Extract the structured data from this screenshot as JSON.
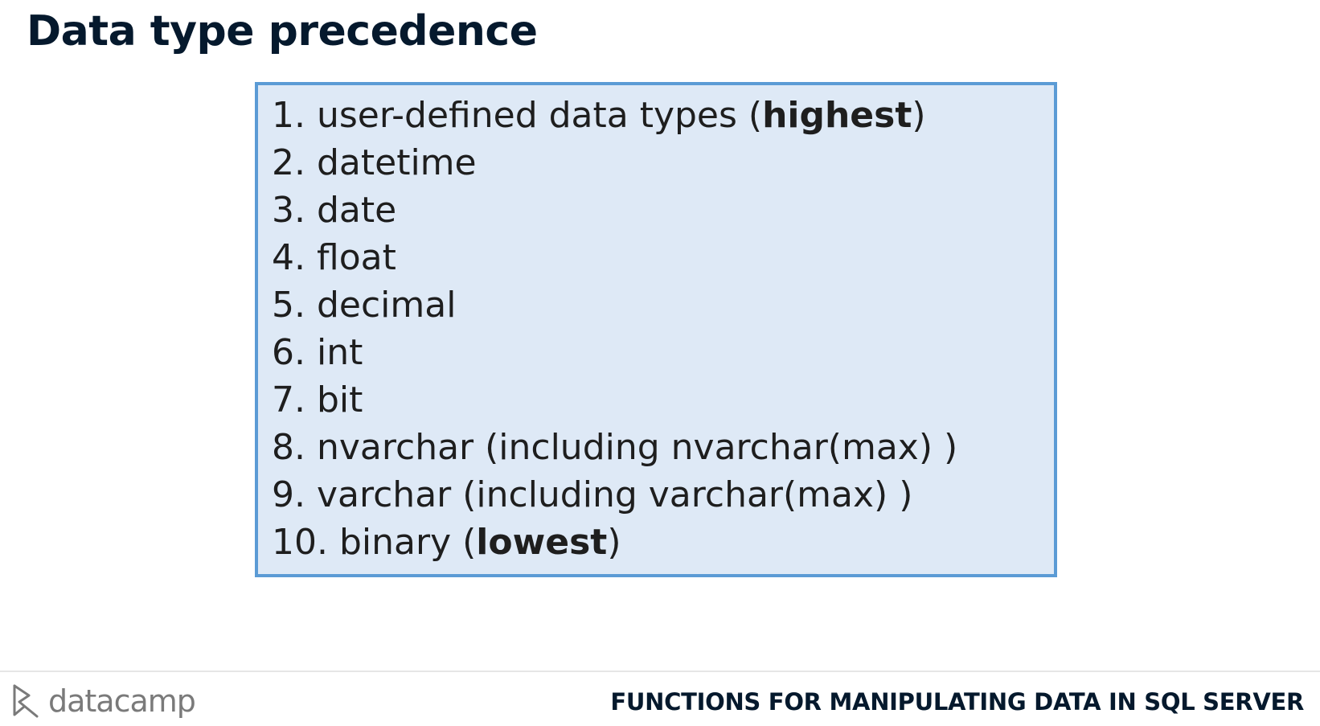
{
  "slide": {
    "title": "Data type precedence"
  },
  "precedence": {
    "items": [
      {
        "rank": "1.",
        "text": "user-defined data types (",
        "emphasis": "highest",
        "suffix": ")"
      },
      {
        "rank": "2.",
        "text": "datetime",
        "emphasis": "",
        "suffix": ""
      },
      {
        "rank": "3.",
        "text": "date",
        "emphasis": "",
        "suffix": ""
      },
      {
        "rank": "4.",
        "text": "float",
        "emphasis": "",
        "suffix": ""
      },
      {
        "rank": "5.",
        "text": "decimal",
        "emphasis": "",
        "suffix": ""
      },
      {
        "rank": "6.",
        "text": "int",
        "emphasis": "",
        "suffix": ""
      },
      {
        "rank": "7.",
        "text": "bit",
        "emphasis": "",
        "suffix": ""
      },
      {
        "rank": "8.",
        "text": "nvarchar (including nvarchar(max) )",
        "emphasis": "",
        "suffix": ""
      },
      {
        "rank": "9.",
        "text": "varchar (including varchar(max) )",
        "emphasis": "",
        "suffix": ""
      },
      {
        "rank": "10.",
        "text": "binary (",
        "emphasis": "lowest",
        "suffix": ")"
      }
    ]
  },
  "footer": {
    "logo_text": "datacamp",
    "logo_icon": "datacamp-logo-icon",
    "course_title": "FUNCTIONS FOR MANIPULATING DATA IN SQL SERVER"
  },
  "colors": {
    "box_background": "#dee9f6",
    "box_border": "#5b9bd5",
    "title": "#05192d"
  }
}
